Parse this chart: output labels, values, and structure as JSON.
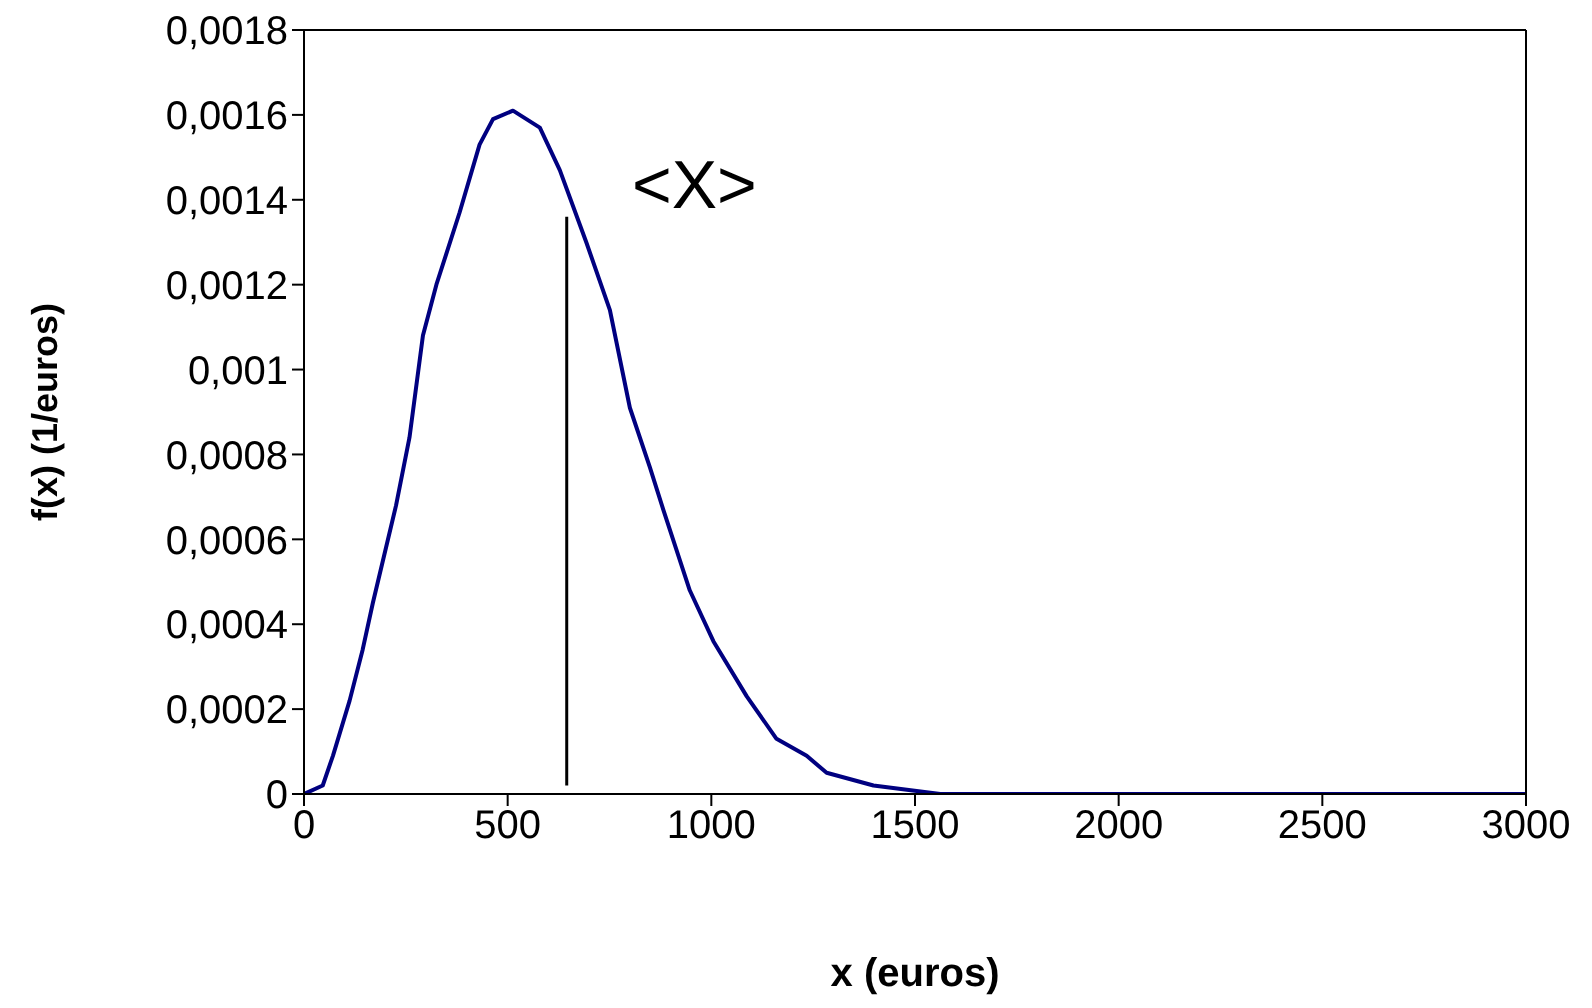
{
  "chart_data": {
    "type": "line",
    "xlabel": "x (euros)",
    "ylabel": "f(x) (1/euros)",
    "xlim": [
      0,
      3000
    ],
    "xticks": [
      0,
      500,
      1000,
      1500,
      2000,
      2500,
      3000
    ],
    "ylim": [
      0,
      0.0018
    ],
    "yticks": [
      0,
      {
        "value": 0.0002,
        "label": "0,0002"
      },
      {
        "value": 0.0004,
        "label": "0,0004"
      },
      {
        "value": 0.0006,
        "label": "0,0006"
      },
      {
        "value": 0.0008,
        "label": "0,0008"
      },
      {
        "value": 0.001,
        "label": "0,001"
      },
      {
        "value": 0.0012,
        "label": "0,0012"
      },
      {
        "value": 0.0014,
        "label": "0,0014"
      },
      {
        "value": 0.0016,
        "label": "0,0016"
      },
      {
        "value": 0.0018,
        "label": "0,0018"
      }
    ],
    "marker": "none",
    "line_style": "solid",
    "series": [
      {
        "color": "#000080",
        "x": [
          0,
          46,
          71,
          112,
          144,
          169,
          226,
          259,
          292,
          325,
          382,
          431,
          464,
          513,
          579,
          628,
          693,
          751,
          800,
          849,
          882,
          947,
          1005,
          1087,
          1160,
          1234,
          1283,
          1398,
          1562,
          2000,
          2500,
          3000
        ],
        "values": [
          0,
          2e-05,
          9e-05,
          0.00022,
          0.00034,
          0.00045,
          0.00068,
          0.00084,
          0.00108,
          0.0012,
          0.00137,
          0.00153,
          0.00159,
          0.00161,
          0.00157,
          0.00147,
          0.0013,
          0.00114,
          0.00091,
          0.00077,
          0.00067,
          0.00048,
          0.00036,
          0.00023,
          0.00013,
          9e-05,
          5e-05,
          2e-05,
          0,
          0,
          0,
          0
        ]
      },
      {
        "color": "#000000",
        "x": [
          645,
          645
        ],
        "values": [
          2e-05,
          0.00136
        ]
      }
    ],
    "annotations": [
      "<X>"
    ]
  }
}
